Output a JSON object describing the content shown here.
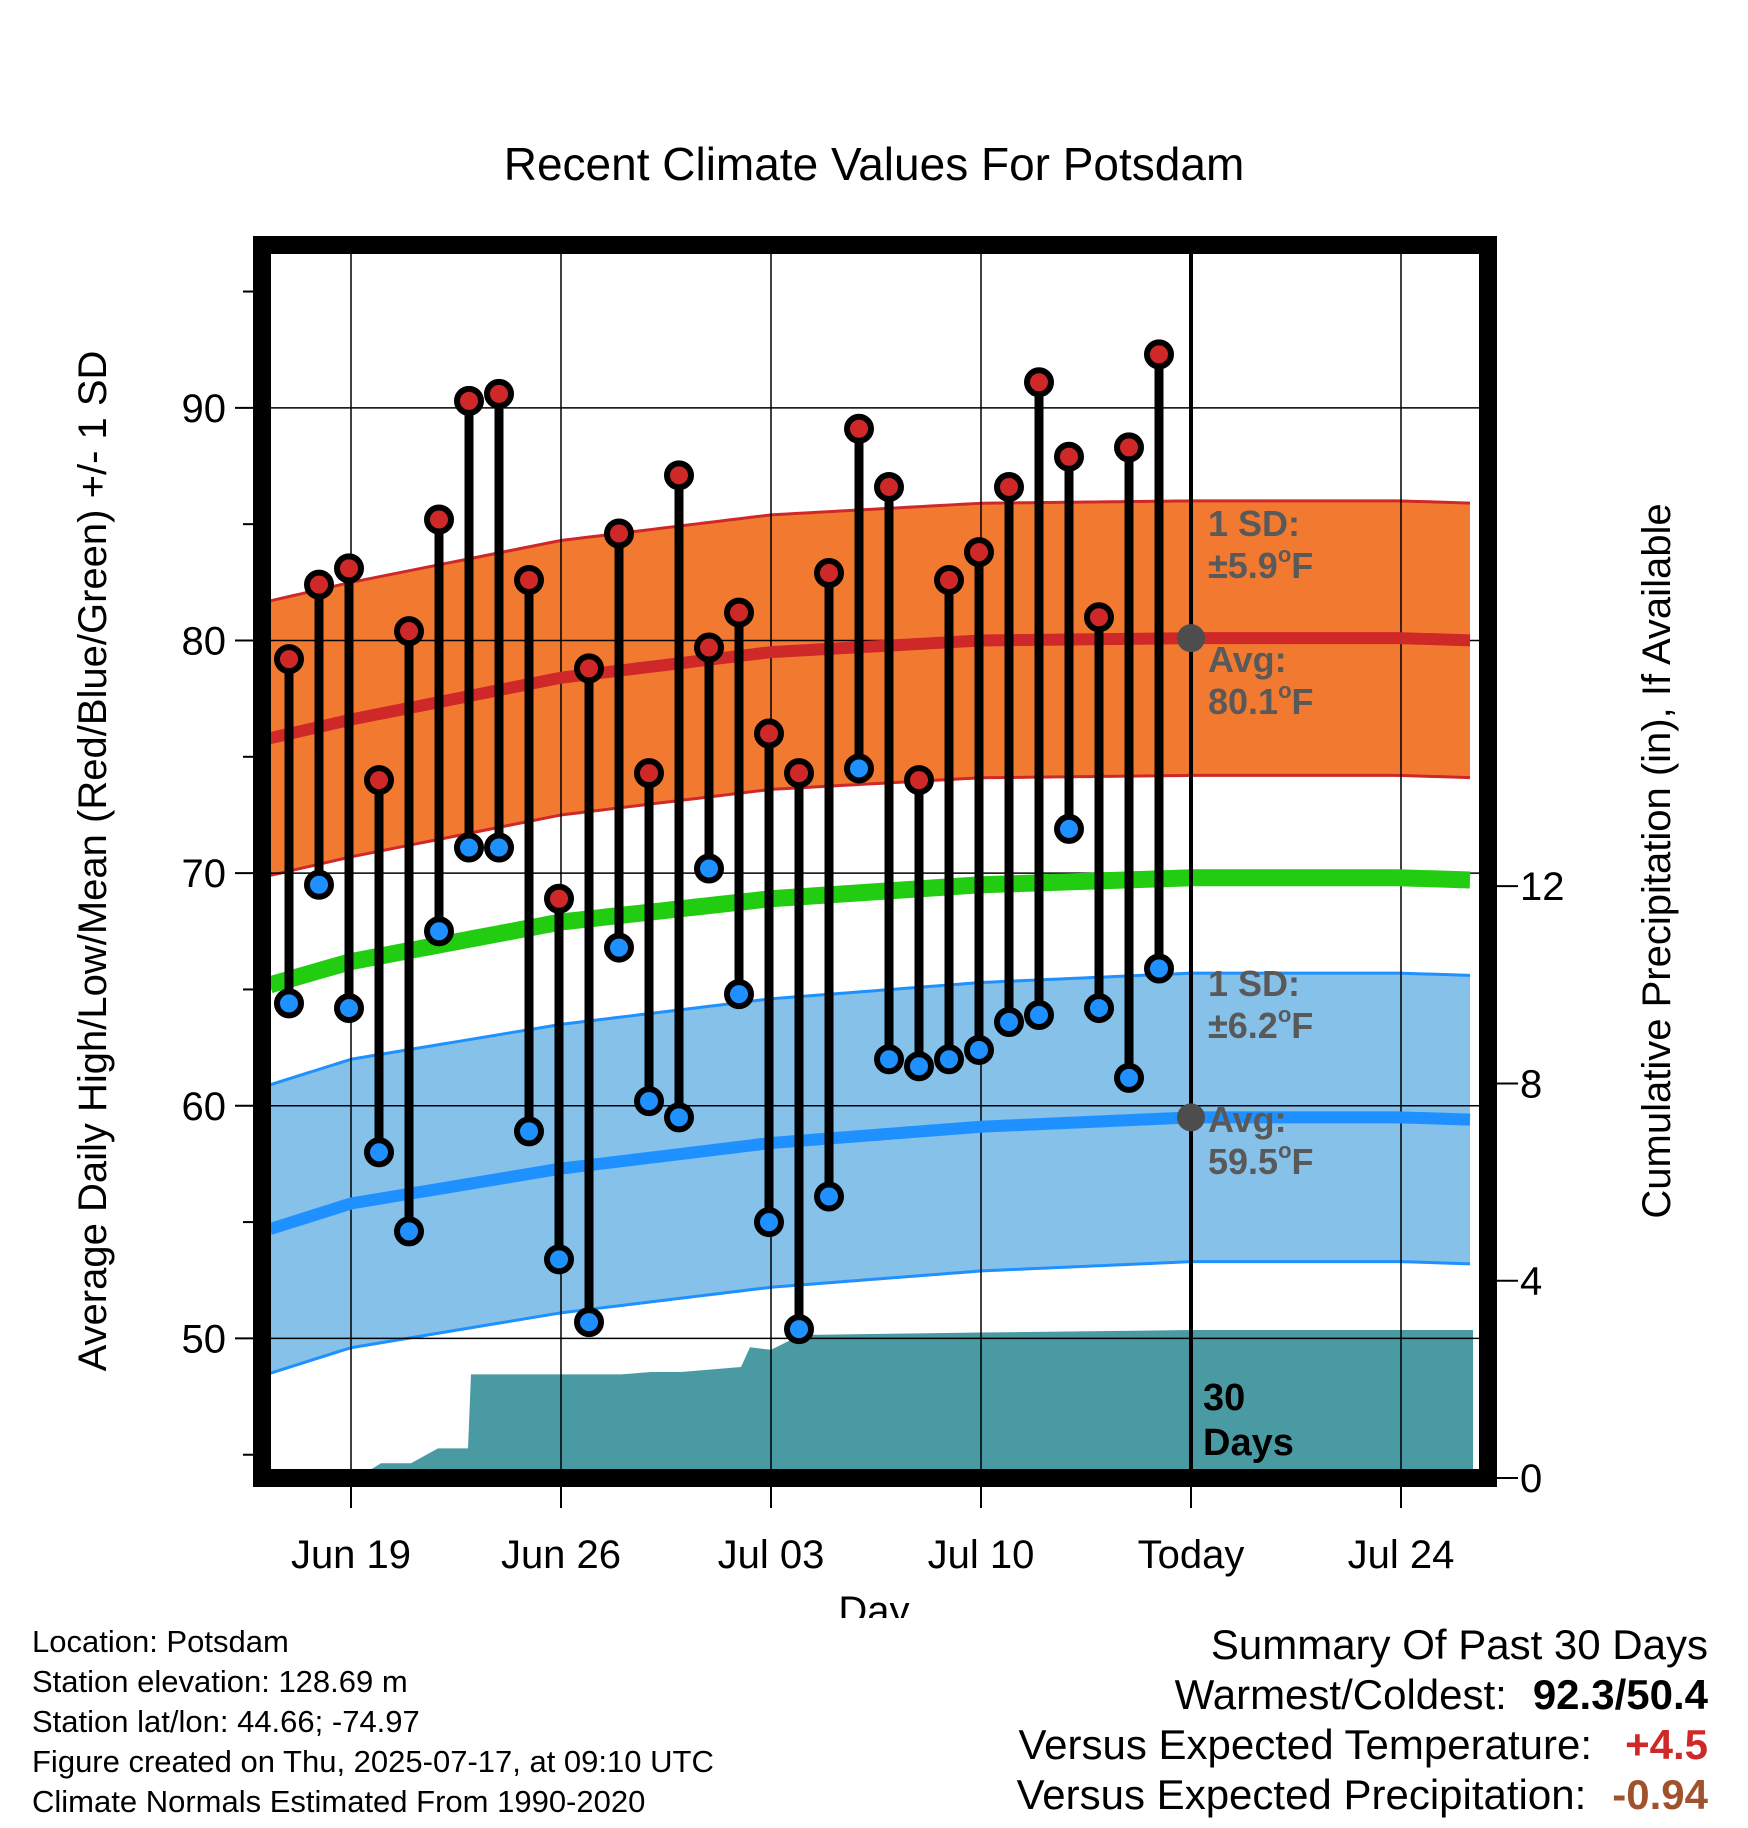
{
  "chart_data": {
    "type": "line",
    "title": "Recent Climate Values For Potsdam",
    "xlabel": "Day",
    "ylabel": "Average Daily High/Low/Mean (Red/Blue/Green) +/- 1 SD",
    "ylabel_right": "Cumulative Precipitation (in), If Available",
    "ylim": [
      44,
      97
    ],
    "ylim_right": [
      0,
      25
    ],
    "yticks": [
      50,
      60,
      70,
      80,
      90
    ],
    "yticks_right": [
      0,
      4,
      8,
      12
    ],
    "xticks": [
      {
        "day": 0,
        "label": "Jun 19"
      },
      {
        "day": 7,
        "label": "Jun 26"
      },
      {
        "day": 14,
        "label": "Jul 03"
      },
      {
        "day": 21,
        "label": "Jul 10"
      },
      {
        "day": 28,
        "label": "Today"
      },
      {
        "day": 35,
        "label": "Jul 24"
      }
    ],
    "xlim": [
      -3.3,
      37.8
    ],
    "today_day": 28,
    "high": [
      79.2,
      82.4,
      83.1,
      74.0,
      80.4,
      85.2,
      90.3,
      90.6,
      82.6,
      68.9,
      78.8,
      84.6,
      74.3,
      87.1,
      79.7,
      81.2,
      76.0,
      74.3,
      82.9,
      89.1,
      86.6,
      74.0,
      82.6,
      83.8,
      86.6,
      91.1,
      87.9,
      81.0,
      88.3,
      92.3
    ],
    "low": [
      64.4,
      69.5,
      64.2,
      58.0,
      54.6,
      67.5,
      71.1,
      71.1,
      58.9,
      53.4,
      50.7,
      66.8,
      60.2,
      59.5,
      70.2,
      64.8,
      55.0,
      50.4,
      56.1,
      74.5,
      62.0,
      61.7,
      62.0,
      62.4,
      63.6,
      63.9,
      71.9,
      64.2,
      61.2,
      65.9
    ],
    "normal_high_avg": {
      "day": [
        -2.7,
        0,
        7,
        14,
        21,
        28,
        35,
        37.4
      ],
      "values": [
        75.8,
        76.6,
        78.4,
        79.5,
        80.0,
        80.1,
        80.1,
        80.0
      ]
    },
    "normal_low_avg": {
      "day": [
        -2.7,
        0,
        7,
        14,
        21,
        28,
        35,
        37.4
      ],
      "values": [
        54.7,
        55.8,
        57.3,
        58.4,
        59.1,
        59.5,
        59.5,
        59.4
      ]
    },
    "normal_mean": {
      "day": [
        -2.7,
        0,
        7,
        14,
        21,
        28,
        35,
        37.4
      ],
      "values": [
        65.2,
        66.2,
        67.9,
        68.9,
        69.5,
        69.8,
        69.8,
        69.7
      ]
    },
    "sd_high": 5.9,
    "sd_low": 6.2,
    "precip_cumulative": {
      "day": [
        -2.7,
        0.2,
        1.0,
        2.0,
        2.9,
        3.9,
        4.0,
        5.0,
        5.1,
        9.0,
        10.0,
        11.0,
        12.0,
        13.0,
        13.3,
        14.0,
        15.0,
        21.0,
        28.0,
        35.0,
        37.4
      ],
      "values": [
        0,
        0,
        0.3,
        0.3,
        0.6,
        0.6,
        2.1,
        2.1,
        2.1,
        2.1,
        2.15,
        2.15,
        2.2,
        2.25,
        2.65,
        2.6,
        2.9,
        2.95,
        3.0,
        3.0,
        3.0
      ]
    },
    "annotations": {
      "high_sd": {
        "line1": "1 SD:",
        "line2": "±5.9",
        "unit": "F"
      },
      "high_avg": {
        "line1": "Avg:",
        "line2": "80.1",
        "unit": "F"
      },
      "low_sd": {
        "line1": "1 SD:",
        "line2": "±6.2",
        "unit": "F"
      },
      "low_avg": {
        "line1": "Avg:",
        "line2": "59.5",
        "unit": "F"
      },
      "days_line1": "30",
      "days_line2": "Days",
      "degree_mark": "o"
    },
    "colors": {
      "high_band": "#f27a30",
      "high_line": "#cf2828",
      "low_band": "#85c1e8",
      "low_line": "#1e90ff",
      "mean_line": "#22cc11",
      "precip": "#4a9aa4",
      "high_dot": "#cf2828",
      "low_dot": "#1e90ff",
      "avg_marker": "#4d4d4d"
    }
  },
  "footer": {
    "location": "Location: Potsdam",
    "elevation": "Station elevation: 128.69 m",
    "latlon": "Station lat/lon: 44.66; -74.97",
    "created": "Figure created on Thu, 2025-07-17, at 09:10 UTC",
    "normals": "Climate Normals Estimated From 1990-2020"
  },
  "summary": {
    "title": "Summary Of Past 30 Days",
    "warmest_label": "Warmest/Coldest:",
    "warmest_value": "92.3/50.4",
    "temp_label": "Versus Expected Temperature:",
    "temp_value": "+4.5",
    "temp_color": "#cf2828",
    "precip_label": "Versus Expected Precipitation:",
    "precip_value": "-0.94",
    "precip_color": "#a0522d"
  }
}
